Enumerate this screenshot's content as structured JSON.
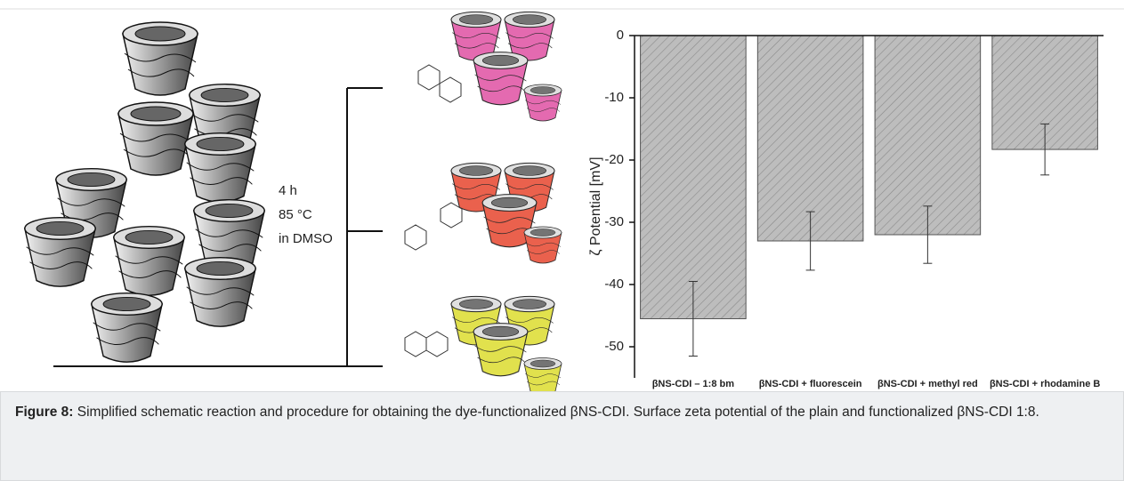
{
  "chart_data": {
    "type": "bar",
    "ylabel": "ζ Potential [mV]",
    "categories": [
      "βNS-CDI – 1:8 bm",
      "βNS-CDI + fluorescein",
      "βNS-CDI + methyl red",
      "βNS-CDI + rhodamine B"
    ],
    "values": [
      -45.5,
      -33,
      -32,
      -18.3
    ],
    "errors": [
      6,
      4.7,
      4.6,
      4.1
    ],
    "color": "#bdbdbd",
    "ylim": [
      -55,
      0
    ],
    "yticks": [
      0,
      -10,
      -20,
      -30,
      -40,
      -50
    ]
  },
  "schematic": {
    "conditions": [
      "4 h",
      "85 °C",
      "in DMSO"
    ]
  },
  "caption": {
    "label": "Figure 8:",
    "text": "Simplified schematic reaction and procedure for obtaining the dye-functionalized βNS-CDI. Surface zeta potential of the plain and functionalized βNS-CDI 1:8."
  }
}
